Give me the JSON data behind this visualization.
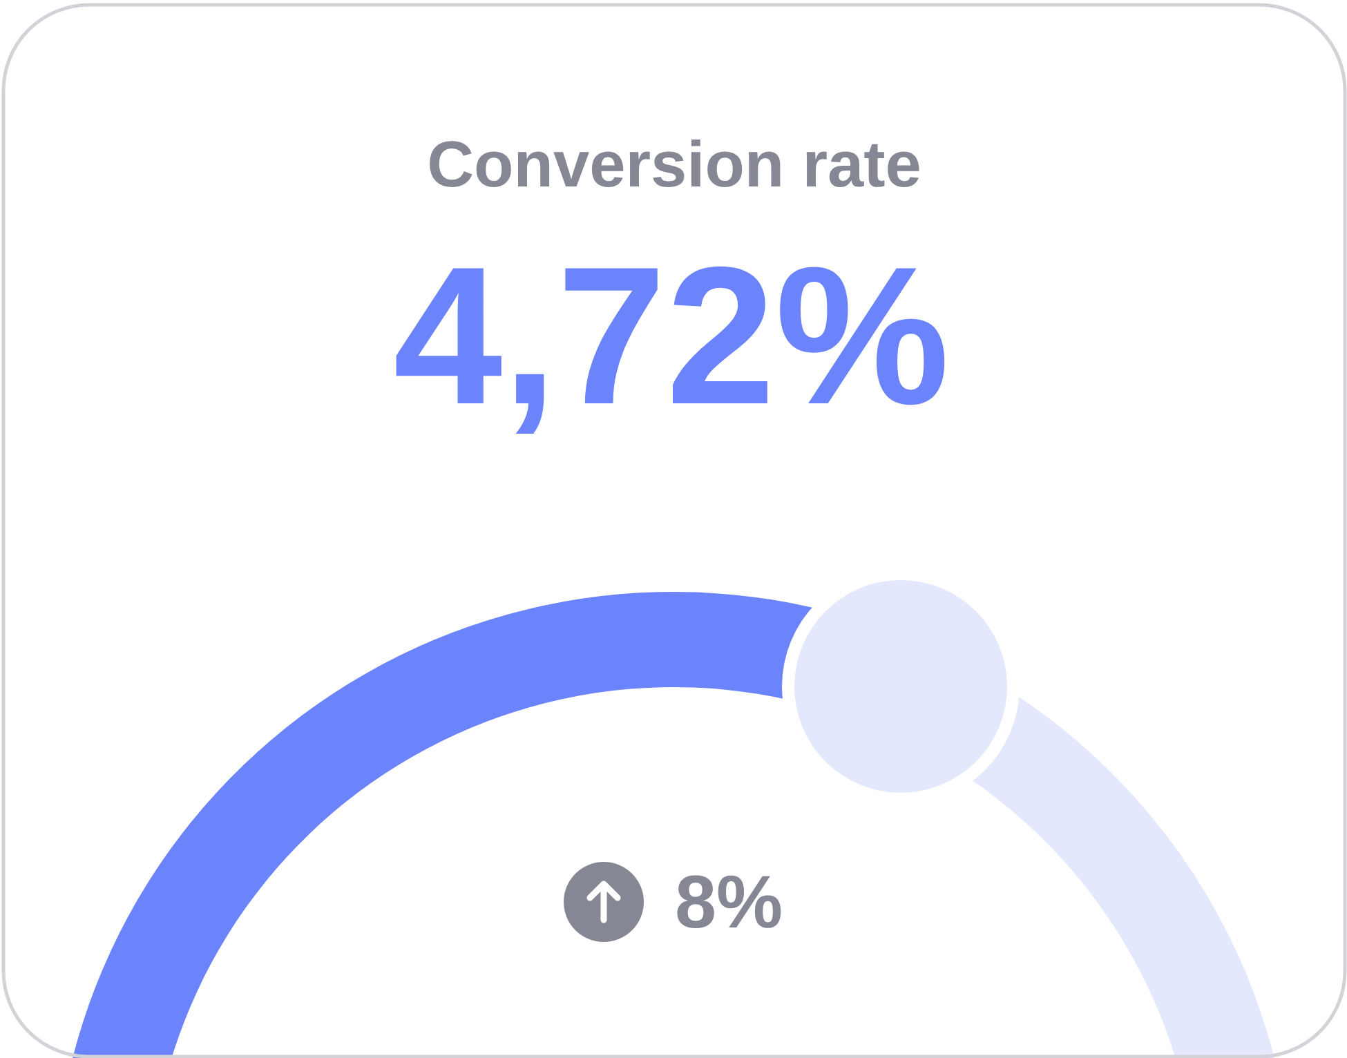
{
  "chart_data": {
    "type": "donut",
    "title": "Conversion rate",
    "values": [
      63,
      37
    ],
    "colors": [
      "#6b84fb",
      "#e3e8fd"
    ],
    "annotations": [
      "4,72%",
      "8%"
    ]
  }
}
